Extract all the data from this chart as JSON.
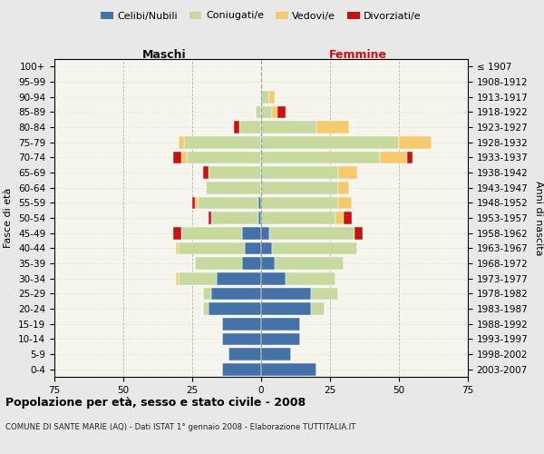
{
  "age_groups": [
    "0-4",
    "5-9",
    "10-14",
    "15-19",
    "20-24",
    "25-29",
    "30-34",
    "35-39",
    "40-44",
    "45-49",
    "50-54",
    "55-59",
    "60-64",
    "65-69",
    "70-74",
    "75-79",
    "80-84",
    "85-89",
    "90-94",
    "95-99",
    "100+"
  ],
  "birth_years": [
    "2003-2007",
    "1998-2002",
    "1993-1997",
    "1988-1992",
    "1983-1987",
    "1978-1982",
    "1973-1977",
    "1968-1972",
    "1963-1967",
    "1958-1962",
    "1953-1957",
    "1948-1952",
    "1943-1947",
    "1938-1942",
    "1933-1937",
    "1928-1932",
    "1923-1927",
    "1918-1922",
    "1913-1917",
    "1908-1912",
    "≤ 1907"
  ],
  "colors": {
    "celibi": "#4472a8",
    "coniugati": "#c8d9a0",
    "vedovi": "#f5c96e",
    "divorziati": "#cc1010"
  },
  "maschi": {
    "celibi": [
      14,
      12,
      14,
      14,
      19,
      18,
      16,
      7,
      6,
      7,
      1,
      1,
      0,
      0,
      0,
      0,
      0,
      0,
      0,
      0,
      0
    ],
    "coniugati": [
      0,
      0,
      0,
      0,
      2,
      3,
      14,
      17,
      24,
      22,
      17,
      22,
      20,
      19,
      27,
      28,
      8,
      2,
      0,
      0,
      0
    ],
    "vedovi": [
      0,
      0,
      0,
      0,
      0,
      0,
      1,
      0,
      1,
      0,
      0,
      1,
      0,
      0,
      2,
      2,
      0,
      0,
      0,
      0,
      0
    ],
    "divorziati": [
      0,
      0,
      0,
      0,
      0,
      0,
      0,
      0,
      0,
      3,
      1,
      1,
      0,
      2,
      3,
      0,
      2,
      0,
      0,
      0,
      0
    ]
  },
  "femmine": {
    "celibi": [
      20,
      11,
      14,
      14,
      18,
      18,
      9,
      5,
      4,
      3,
      0,
      0,
      0,
      0,
      0,
      0,
      0,
      0,
      0,
      0,
      0
    ],
    "coniugati": [
      0,
      0,
      0,
      0,
      5,
      10,
      18,
      25,
      31,
      31,
      27,
      28,
      28,
      28,
      43,
      50,
      20,
      4,
      3,
      0,
      0
    ],
    "vedovi": [
      0,
      0,
      0,
      0,
      0,
      0,
      0,
      0,
      0,
      0,
      3,
      5,
      4,
      7,
      10,
      12,
      12,
      2,
      2,
      0,
      0
    ],
    "divorziati": [
      0,
      0,
      0,
      0,
      0,
      0,
      0,
      0,
      0,
      3,
      3,
      0,
      0,
      0,
      2,
      0,
      0,
      3,
      0,
      0,
      0
    ]
  },
  "xlim": [
    -75,
    75
  ],
  "xticks": [
    -75,
    -50,
    -25,
    0,
    25,
    50,
    75
  ],
  "xticklabels": [
    "75",
    "50",
    "25",
    "0",
    "25",
    "50",
    "75"
  ],
  "title": "Popolazione per età, sesso e stato civile - 2008",
  "subtitle": "COMUNE DI SANTE MARIE (AQ) - Dati ISTAT 1° gennaio 2008 - Elaborazione TUTTITALIA.IT",
  "ylabel_left": "Fasce di età",
  "ylabel_right": "Anni di nascita",
  "label_maschi": "Maschi",
  "label_femmine": "Femmine",
  "legend_labels": [
    "Celibi/Nubili",
    "Coniugati/e",
    "Vedovi/e",
    "Divorziati/e"
  ],
  "bg_color": "#e8e8e8",
  "plot_bg_color": "#f5f5ee"
}
